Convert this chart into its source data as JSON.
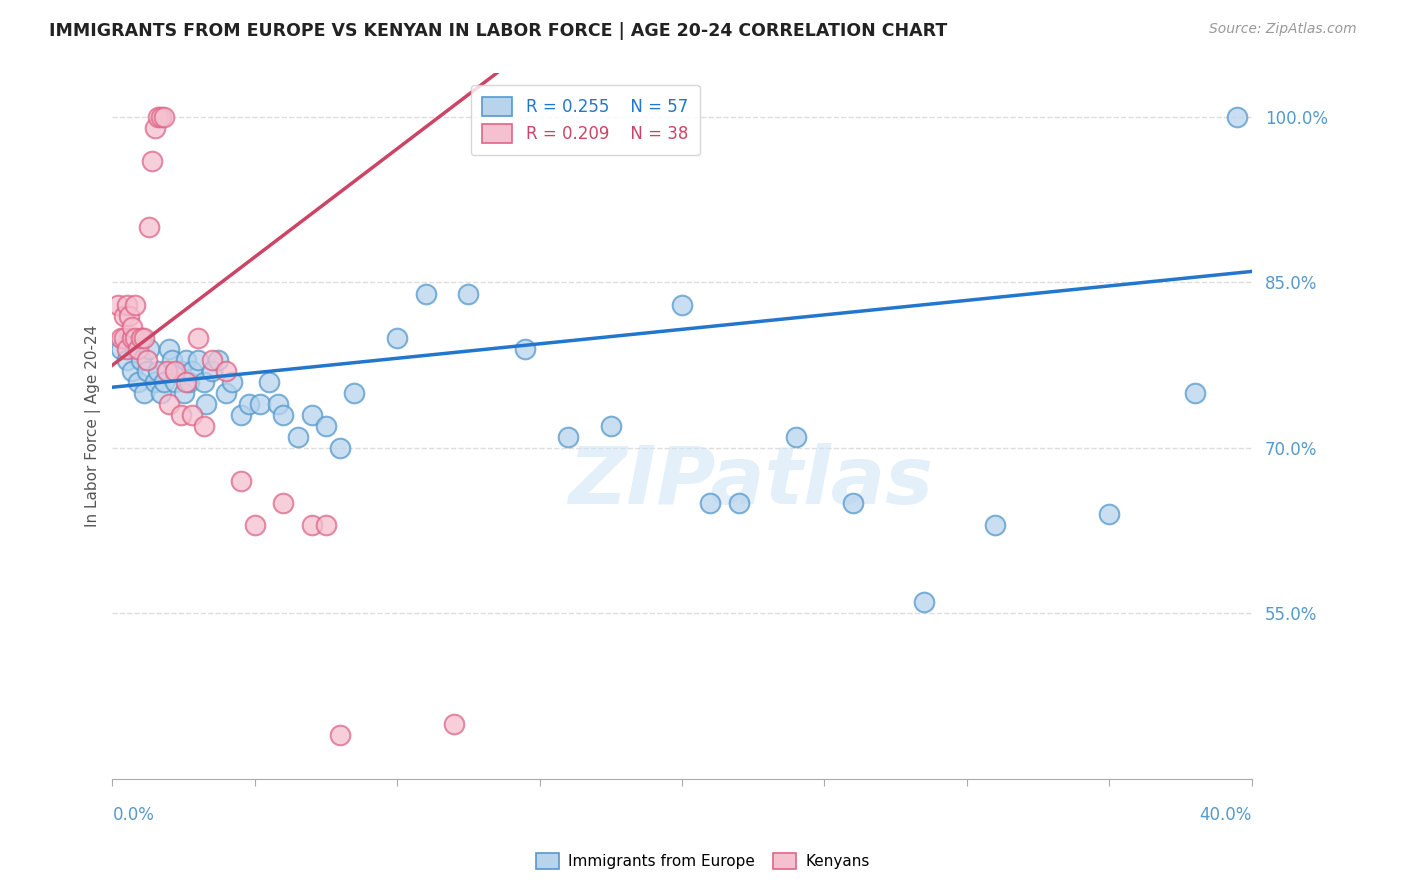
{
  "title": "IMMIGRANTS FROM EUROPE VS KENYAN IN LABOR FORCE | AGE 20-24 CORRELATION CHART",
  "source": "Source: ZipAtlas.com",
  "ylabel": "In Labor Force | Age 20-24",
  "xlim": [
    0.0,
    0.4
  ],
  "ylim": [
    0.4,
    1.04
  ],
  "yticks": [
    0.55,
    0.7,
    0.85,
    1.0
  ],
  "ytick_labels": [
    "55.0%",
    "70.0%",
    "85.0%",
    "100.0%"
  ],
  "legend_blue_r": "R = 0.255",
  "legend_blue_n": "N = 57",
  "legend_pink_r": "R = 0.209",
  "legend_pink_n": "N = 38",
  "watermark": "ZIPatlas",
  "blue_color": "#b8d4ed",
  "blue_edge_color": "#5599cc",
  "blue_line_color": "#2277cc",
  "pink_color": "#f5c0d0",
  "pink_edge_color": "#dd6688",
  "pink_line_color": "#cc4466",
  "tick_color": "#5599cc",
  "grid_color": "#dddddd",
  "blue_scatter_x": [
    0.003,
    0.005,
    0.006,
    0.007,
    0.008,
    0.009,
    0.01,
    0.01,
    0.011,
    0.012,
    0.013,
    0.015,
    0.016,
    0.017,
    0.018,
    0.02,
    0.021,
    0.022,
    0.024,
    0.025,
    0.026,
    0.027,
    0.028,
    0.03,
    0.032,
    0.033,
    0.035,
    0.037,
    0.04,
    0.042,
    0.045,
    0.048,
    0.052,
    0.055,
    0.058,
    0.06,
    0.065,
    0.07,
    0.075,
    0.08,
    0.085,
    0.1,
    0.11,
    0.125,
    0.145,
    0.16,
    0.175,
    0.2,
    0.21,
    0.22,
    0.24,
    0.26,
    0.285,
    0.31,
    0.35,
    0.38,
    0.395
  ],
  "blue_scatter_y": [
    0.79,
    0.78,
    0.8,
    0.77,
    0.79,
    0.76,
    0.8,
    0.78,
    0.75,
    0.77,
    0.79,
    0.76,
    0.77,
    0.75,
    0.76,
    0.79,
    0.78,
    0.76,
    0.77,
    0.75,
    0.78,
    0.76,
    0.77,
    0.78,
    0.76,
    0.74,
    0.77,
    0.78,
    0.75,
    0.76,
    0.73,
    0.74,
    0.74,
    0.76,
    0.74,
    0.73,
    0.71,
    0.73,
    0.72,
    0.7,
    0.75,
    0.8,
    0.84,
    0.84,
    0.79,
    0.71,
    0.72,
    0.83,
    0.65,
    0.65,
    0.71,
    0.65,
    0.56,
    0.63,
    0.64,
    0.75,
    1.0
  ],
  "pink_scatter_x": [
    0.002,
    0.003,
    0.004,
    0.004,
    0.005,
    0.005,
    0.006,
    0.007,
    0.007,
    0.008,
    0.008,
    0.009,
    0.01,
    0.011,
    0.012,
    0.013,
    0.014,
    0.015,
    0.016,
    0.017,
    0.018,
    0.019,
    0.02,
    0.022,
    0.024,
    0.026,
    0.028,
    0.03,
    0.032,
    0.035,
    0.04,
    0.045,
    0.05,
    0.06,
    0.07,
    0.075,
    0.08,
    0.12
  ],
  "pink_scatter_y": [
    0.83,
    0.8,
    0.82,
    0.8,
    0.83,
    0.79,
    0.82,
    0.8,
    0.81,
    0.83,
    0.8,
    0.79,
    0.8,
    0.8,
    0.78,
    0.9,
    0.96,
    0.99,
    1.0,
    1.0,
    1.0,
    0.77,
    0.74,
    0.77,
    0.73,
    0.76,
    0.73,
    0.8,
    0.72,
    0.78,
    0.77,
    0.67,
    0.63,
    0.65,
    0.63,
    0.63,
    0.44,
    0.45
  ],
  "blue_trend_x": [
    0.0,
    0.4
  ],
  "blue_trend_y": [
    0.755,
    0.86
  ],
  "pink_trend_x": [
    0.0,
    0.135
  ],
  "pink_trend_y": [
    0.775,
    1.04
  ]
}
